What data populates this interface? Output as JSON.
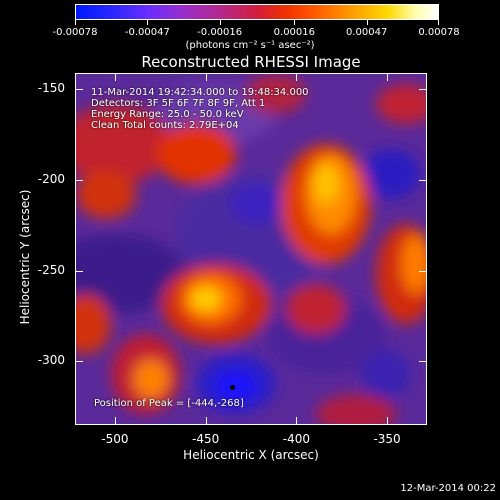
{
  "colorbar": {
    "tick_labels": [
      "-0.00078",
      "-0.00047",
      "-0.00016",
      "0.00016",
      "0.00047",
      "0.00078"
    ],
    "units": "(photons cm⁻² s⁻¹ asec⁻²)"
  },
  "title": "Reconstructed RHESSI Image",
  "annotations": {
    "time_range": "11-Mar-2014 19:42:34.000 to 19:48:34.000",
    "detectors": "Detectors: 3F 5F 6F 7F 8F 9F, Att 1",
    "energy_range": "Energy Range: 25.0 - 50.0 keV",
    "algorithm": "Clean     Total counts: 2.79E+04",
    "peak": "Position of Peak = [-444,-268]"
  },
  "chart_data": {
    "type": "heatmap",
    "title": "Reconstructed RHESSI Image",
    "xlabel": "Heliocentric X (arcsec)",
    "ylabel": "Heliocentric Y (arcsec)",
    "xlim": [
      -522,
      -328
    ],
    "ylim": [
      -335,
      -141
    ],
    "xticks": [
      -500,
      -450,
      -400,
      -350
    ],
    "yticks": [
      -150,
      -200,
      -250,
      -300
    ],
    "xtick_labels": [
      "-500",
      "-450",
      "-400",
      "-350"
    ],
    "ytick_labels": [
      "-150",
      "-200",
      "-250",
      "-300"
    ],
    "value_range": [
      -0.00078,
      0.00078
    ],
    "peak_position": [
      -444,
      -268
    ]
  },
  "footer": {
    "date": "12-Mar-2014 00:22"
  }
}
